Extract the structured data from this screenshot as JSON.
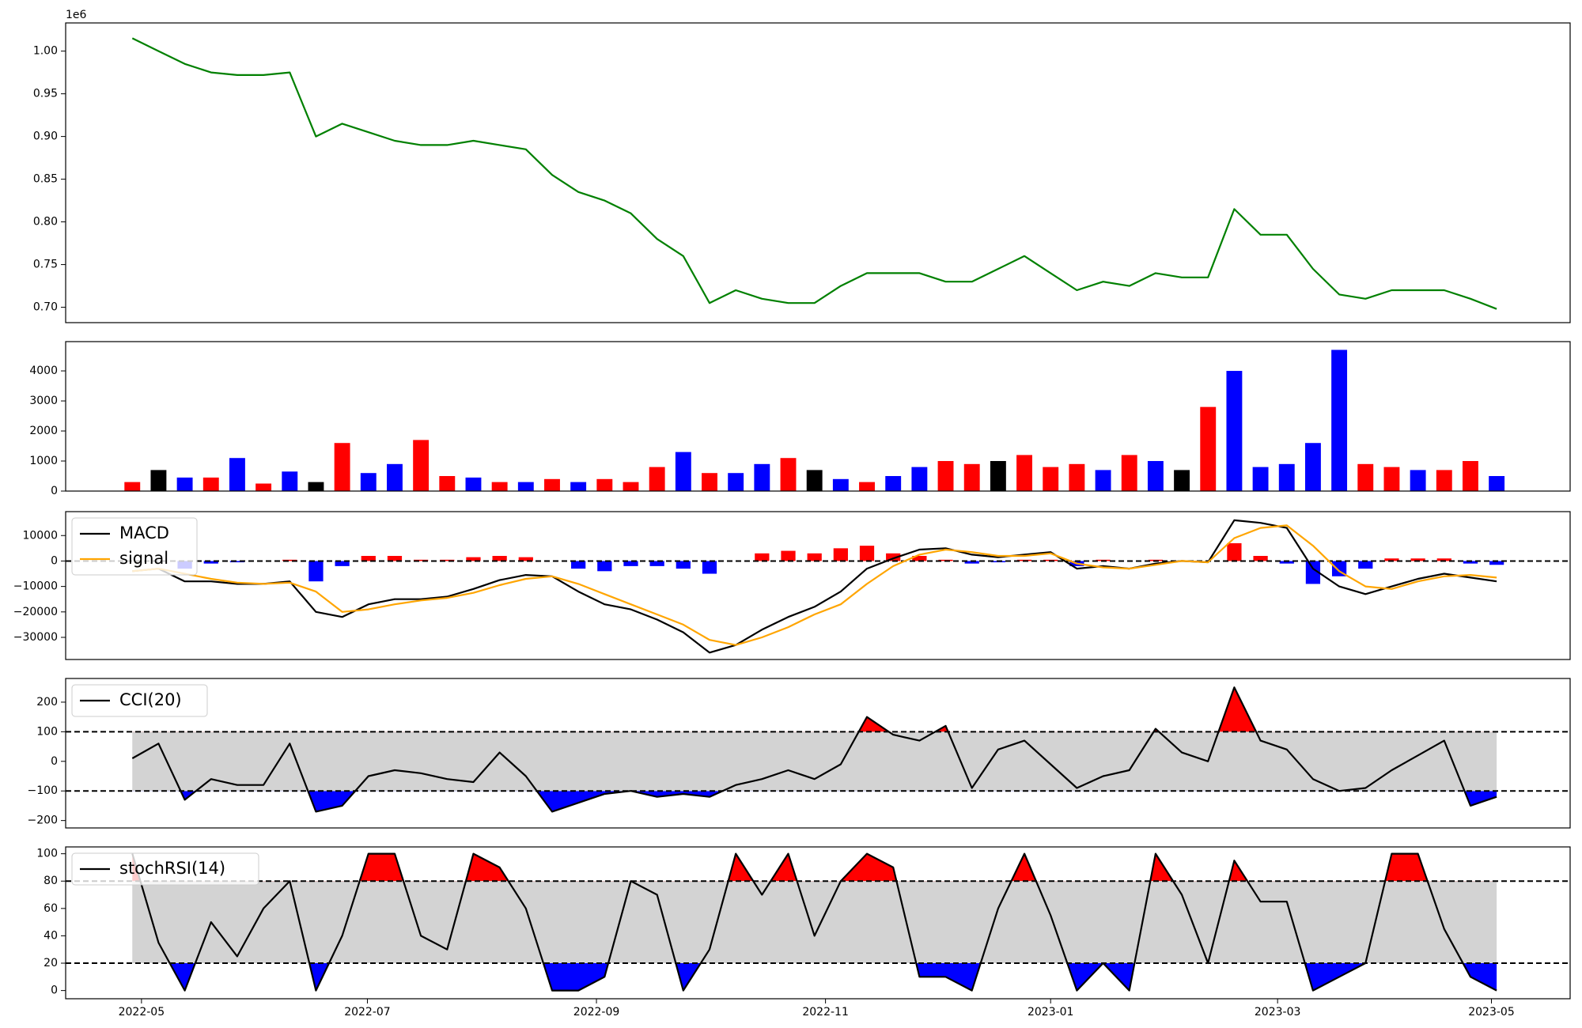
{
  "chart_data": [
    {
      "type": "line",
      "y_offset_label": "1e6",
      "series": [
        {
          "color": "green",
          "values": [
            1.015,
            1.0,
            0.985,
            0.975,
            0.972,
            0.972,
            0.975,
            0.9,
            0.915,
            0.905,
            0.895,
            0.89,
            0.89,
            0.895,
            0.89,
            0.885,
            0.855,
            0.835,
            0.825,
            0.81,
            0.78,
            0.76,
            0.705,
            0.72,
            0.71,
            0.705,
            0.705,
            0.725,
            0.74,
            0.74,
            0.74,
            0.73,
            0.73,
            0.745,
            0.76,
            0.74,
            0.72,
            0.73,
            0.725,
            0.74,
            0.735,
            0.735,
            0.815,
            0.785,
            0.785,
            0.745,
            0.715,
            0.71,
            0.72,
            0.72,
            0.72,
            0.71,
            0.698
          ]
        }
      ],
      "ylim": [
        0.682,
        1.033
      ],
      "yticks": [
        {
          "value": 0.7,
          "label": "0.70"
        },
        {
          "value": 0.75,
          "label": "0.75"
        },
        {
          "value": 0.8,
          "label": "0.80"
        },
        {
          "value": 0.85,
          "label": "0.85"
        },
        {
          "value": 0.9,
          "label": "0.90"
        },
        {
          "value": 0.95,
          "label": "0.95"
        },
        {
          "value": 1.0,
          "label": "1.00"
        }
      ]
    },
    {
      "type": "bar",
      "values": [
        300,
        700,
        450,
        450,
        1100,
        250,
        650,
        300,
        1600,
        600,
        900,
        1700,
        500,
        450,
        300,
        300,
        400,
        300,
        400,
        300,
        800,
        1300,
        600,
        600,
        900,
        1100,
        700,
        400,
        300,
        500,
        800,
        1000,
        900,
        1000,
        1200,
        800,
        900,
        700,
        1200,
        1000,
        700,
        2800,
        4000,
        800,
        900,
        1600,
        4700,
        900,
        800,
        700,
        700,
        1000,
        500
      ],
      "colors": [
        "red",
        "black",
        "blue",
        "red",
        "blue",
        "red",
        "blue",
        "black",
        "red",
        "blue",
        "blue",
        "red",
        "red",
        "blue",
        "red",
        "blue",
        "red",
        "blue",
        "red",
        "red",
        "red",
        "blue",
        "red",
        "blue",
        "blue",
        "red",
        "black",
        "blue",
        "red",
        "blue",
        "blue",
        "red",
        "red",
        "black",
        "red",
        "red",
        "red",
        "blue",
        "red",
        "blue",
        "black",
        "red",
        "blue",
        "blue",
        "blue",
        "blue",
        "blue",
        "red",
        "red",
        "blue",
        "red",
        "red",
        "blue"
      ],
      "ylim": [
        0,
        4975
      ],
      "yticks": [
        0,
        1000,
        2000,
        3000,
        4000
      ]
    },
    {
      "type": "macd",
      "legend": "upper left",
      "hline": 0,
      "series": [
        {
          "name": "MACD",
          "color": "black",
          "values": [
            -4000,
            -3000,
            -8000,
            -8000,
            -9000,
            -9000,
            -8000,
            -20000,
            -22000,
            -17000,
            -15000,
            -15000,
            -14000,
            -11000,
            -7500,
            -5500,
            -6000,
            -12000,
            -17000,
            -19000,
            -23000,
            -28000,
            -36000,
            -33000,
            -27000,
            -22000,
            -18000,
            -12000,
            -3000,
            1000,
            4500,
            5000,
            2500,
            1500,
            2500,
            3500,
            -3000,
            -2000,
            -3000,
            -1000,
            0,
            -500,
            16000,
            15000,
            13000,
            -3000,
            -10000,
            -13000,
            -10000,
            -7000,
            -5000,
            -6500,
            -8000
          ]
        },
        {
          "name": "signal",
          "color": "orange",
          "values": [
            -4000,
            -3000,
            -5000,
            -7000,
            -8500,
            -9000,
            -8500,
            -12000,
            -20000,
            -19000,
            -17000,
            -15500,
            -14500,
            -12500,
            -9500,
            -7000,
            -6000,
            -9000,
            -13000,
            -17000,
            -21000,
            -25000,
            -31000,
            -33000,
            -30000,
            -26000,
            -21000,
            -17000,
            -9000,
            -2000,
            2500,
            4500,
            3500,
            2000,
            2000,
            3000,
            -1000,
            -2500,
            -3000,
            -1500,
            0,
            -500,
            9000,
            13000,
            14000,
            6000,
            -4000,
            -10000,
            -11000,
            -8000,
            -6000,
            -5500,
            -6500
          ]
        }
      ],
      "histogram": {
        "positive_color": "red",
        "negative_color": "blue",
        "values": [
          0,
          0,
          -3000,
          -1000,
          -500,
          0,
          500,
          -8000,
          -2000,
          2000,
          2000,
          500,
          500,
          1500,
          2000,
          1500,
          0,
          -3000,
          -4000,
          -2000,
          -2000,
          -3000,
          -5000,
          0,
          3000,
          4000,
          3000,
          5000,
          6000,
          3000,
          2000,
          500,
          -1000,
          -500,
          500,
          500,
          -2000,
          500,
          0,
          500,
          0,
          0,
          7000,
          2000,
          -1000,
          -9000,
          -6000,
          -3000,
          1000,
          1000,
          1000,
          -1000,
          -1500
        ]
      },
      "ylim": [
        -38700,
        19400
      ],
      "yticks": [
        {
          "value": -30000,
          "label": "−30000"
        },
        {
          "value": -20000,
          "label": "−20000"
        },
        {
          "value": -10000,
          "label": "−10000"
        },
        0,
        10000
      ]
    },
    {
      "type": "oscillator",
      "legend": "upper left",
      "bands": [
        -100,
        100
      ],
      "band_color": "lightgray",
      "upper_color": "red",
      "lower_color": "blue",
      "series": [
        {
          "name": "CCI(20)",
          "color": "black",
          "values": [
            10,
            60,
            -130,
            -60,
            -80,
            -80,
            60,
            -170,
            -150,
            -50,
            -30,
            -40,
            -60,
            -70,
            30,
            -50,
            -170,
            -140,
            -110,
            -100,
            -120,
            -110,
            -120,
            -80,
            -60,
            -30,
            -60,
            -10,
            150,
            90,
            70,
            120,
            -90,
            40,
            70,
            -10,
            -90,
            -50,
            -30,
            110,
            30,
            0,
            250,
            70,
            40,
            -60,
            -100,
            -90,
            -30,
            20,
            70,
            -150,
            -120
          ]
        }
      ],
      "ylim": [
        -225,
        280
      ],
      "yticks": [
        {
          "value": -200,
          "label": "−200"
        },
        {
          "value": -100,
          "label": "−100"
        },
        0,
        100,
        200
      ]
    },
    {
      "type": "oscillator",
      "legend": "upper left",
      "bands": [
        20,
        80
      ],
      "band_color": "lightgray",
      "upper_color": "red",
      "lower_color": "blue",
      "series": [
        {
          "name": "stochRSI(14)",
          "color": "black",
          "values": [
            100,
            35,
            0,
            50,
            25,
            60,
            80,
            0,
            40,
            100,
            100,
            40,
            30,
            100,
            90,
            60,
            0,
            0,
            10,
            80,
            70,
            0,
            30,
            100,
            70,
            100,
            40,
            80,
            100,
            90,
            10,
            10,
            0,
            60,
            100,
            55,
            0,
            20,
            0,
            100,
            70,
            20,
            95,
            65,
            65,
            0,
            10,
            20,
            100,
            100,
            45,
            10,
            0
          ]
        }
      ],
      "ylim": [
        -6,
        105
      ],
      "yticks": [
        0,
        20,
        40,
        60,
        80,
        100
      ],
      "xlim": [
        -2.54,
        54.8
      ],
      "xticks": [
        {
          "value": 0.35,
          "label": "2022-05"
        },
        {
          "value": 8.96,
          "label": "2022-07"
        },
        {
          "value": 17.69,
          "label": "2022-09"
        },
        {
          "value": 26.42,
          "label": "2022-11"
        },
        {
          "value": 35.0,
          "label": "2023-01"
        },
        {
          "value": 43.65,
          "label": "2023-03"
        },
        {
          "value": 51.8,
          "label": "2023-05"
        }
      ]
    }
  ]
}
